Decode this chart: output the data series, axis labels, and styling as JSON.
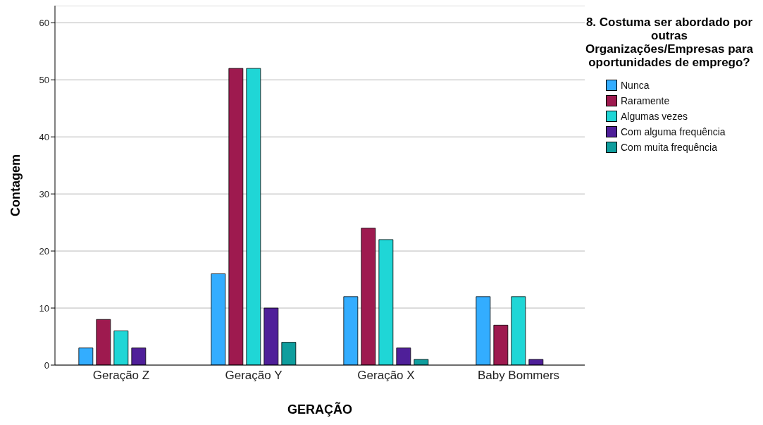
{
  "chart_data": {
    "type": "bar",
    "xlabel": "GERAÇÃO",
    "ylabel": "Contagem",
    "legend_title": "8. Costuma ser abordado por outras Organizações/Empresas para oportunidades de emprego?",
    "categories": [
      "Geração Z",
      "Geração Y",
      "Geração X",
      "Baby Bommers"
    ],
    "series": [
      {
        "name": "Nunca",
        "color": "#33adff",
        "values": [
          3,
          16,
          12,
          12
        ]
      },
      {
        "name": "Raramente",
        "color": "#9e1a4f",
        "values": [
          8,
          52,
          24,
          7
        ]
      },
      {
        "name": "Algumas vezes",
        "color": "#1fd6d6",
        "values": [
          6,
          52,
          22,
          12
        ]
      },
      {
        "name": "Com alguma frequência",
        "color": "#4f1f99",
        "values": [
          3,
          10,
          3,
          1
        ]
      },
      {
        "name": "Com muita frequência",
        "color": "#0f9e9e",
        "values": [
          0,
          4,
          1,
          0
        ]
      }
    ],
    "ylim": [
      0,
      63
    ],
    "yticks": [
      0,
      10,
      20,
      30,
      40,
      50,
      60
    ],
    "grid": "y",
    "legend": "right"
  }
}
